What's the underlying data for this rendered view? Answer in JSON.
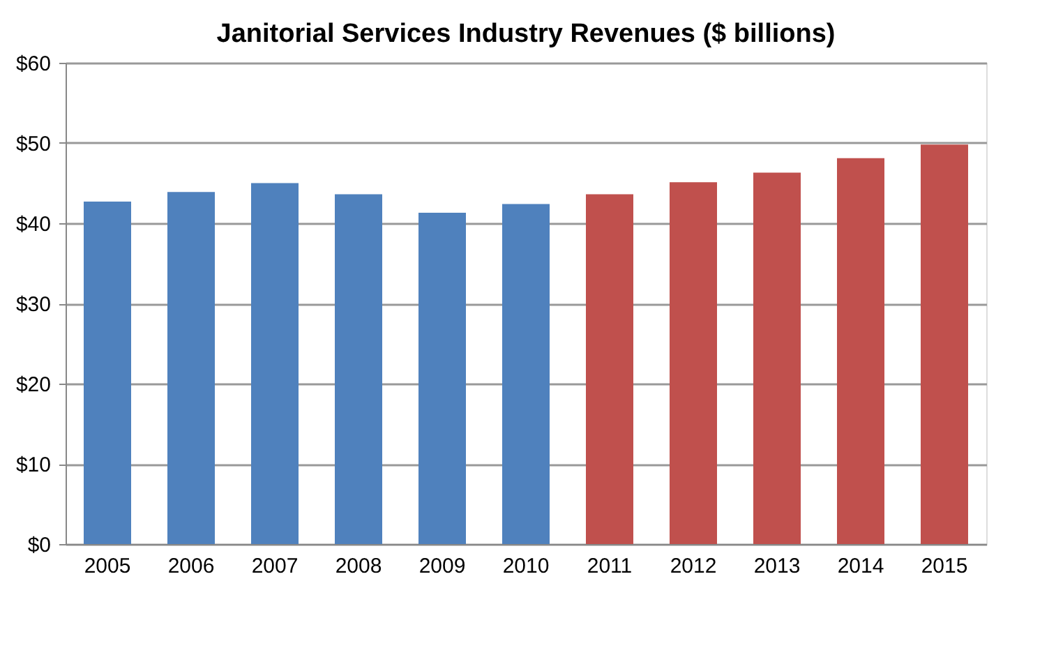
{
  "chart_data": {
    "type": "bar",
    "title": "Janitorial Services Industry Revenues ($ billions)",
    "categories": [
      "2005",
      "2006",
      "2007",
      "2008",
      "2009",
      "2010",
      "2011",
      "2012",
      "2013",
      "2014",
      "2015"
    ],
    "values": [
      42.7,
      43.9,
      45.0,
      43.6,
      41.3,
      42.4,
      43.6,
      45.1,
      46.3,
      48.1,
      49.8
    ],
    "colors": [
      "#4f81bd",
      "#4f81bd",
      "#4f81bd",
      "#4f81bd",
      "#4f81bd",
      "#4f81bd",
      "#c0504d",
      "#c0504d",
      "#c0504d",
      "#c0504d",
      "#c0504d"
    ],
    "ylim": [
      0,
      60
    ],
    "yticks": [
      {
        "value": 0,
        "label": "$0"
      },
      {
        "value": 10,
        "label": "$10"
      },
      {
        "value": 20,
        "label": "$20"
      },
      {
        "value": 30,
        "label": "$30"
      },
      {
        "value": 40,
        "label": "$40"
      },
      {
        "value": 50,
        "label": "$50"
      },
      {
        "value": 60,
        "label": "$60"
      }
    ],
    "grid": "y"
  }
}
